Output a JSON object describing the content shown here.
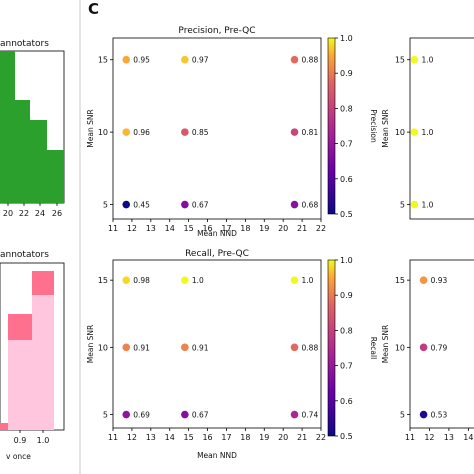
{
  "panel_label": "C",
  "left_panels": {
    "top_title": "annotators",
    "top_ticks": [
      "20",
      "22",
      "24",
      "26"
    ],
    "bottom_title": "annotators",
    "bottom_xlabel": "v once",
    "bottom_ticks": [
      "0.9",
      "1.0"
    ],
    "colors": {
      "green": "#2ca02c",
      "pink_light": "#ffc6de",
      "pink_dark": "#ff6f8e",
      "purple_bar": "#e0348a"
    }
  },
  "chart_data": [
    {
      "type": "scatter",
      "title": "Precision, Pre-QC",
      "xlabel": "Mean NND",
      "ylabel": "Mean SNR",
      "xlim": [
        11,
        22
      ],
      "ylim": [
        4,
        16.5
      ],
      "xticks": [
        "11",
        "12",
        "13",
        "14",
        "15",
        "16",
        "17",
        "18",
        "19",
        "20",
        "21",
        "22"
      ],
      "yticks": [
        "5",
        "10",
        "15"
      ],
      "colorbar": {
        "label": "Precision",
        "range": [
          0.5,
          1.0
        ],
        "ticks": [
          "0.5",
          "0.6",
          "0.7",
          "0.8",
          "0.9",
          "1.0"
        ],
        "colormap": "plasma"
      },
      "points": [
        {
          "x": 11.7,
          "y": 15,
          "value": 0.95,
          "label": "0.95"
        },
        {
          "x": 14.8,
          "y": 15,
          "value": 0.97,
          "label": "0.97"
        },
        {
          "x": 20.6,
          "y": 15,
          "value": 0.88,
          "label": "0.88"
        },
        {
          "x": 11.7,
          "y": 10,
          "value": 0.96,
          "label": "0.96"
        },
        {
          "x": 14.8,
          "y": 10,
          "value": 0.85,
          "label": "0.85"
        },
        {
          "x": 20.6,
          "y": 10,
          "value": 0.81,
          "label": "0.81"
        },
        {
          "x": 11.7,
          "y": 5,
          "value": 0.45,
          "label": "0.45"
        },
        {
          "x": 14.8,
          "y": 5,
          "value": 0.67,
          "label": "0.67"
        },
        {
          "x": 20.6,
          "y": 5,
          "value": 0.68,
          "label": "0.68"
        }
      ]
    },
    {
      "type": "scatter",
      "title": "Recall, Pre-QC",
      "xlabel": "Mean NND",
      "ylabel": "Mean SNR",
      "xlim": [
        11,
        22
      ],
      "ylim": [
        4,
        16.5
      ],
      "xticks": [
        "11",
        "12",
        "13",
        "14",
        "15",
        "16",
        "17",
        "18",
        "19",
        "20",
        "21",
        "22"
      ],
      "yticks": [
        "5",
        "10",
        "15"
      ],
      "colorbar": {
        "label": "Recall",
        "range": [
          0.5,
          1.0
        ],
        "ticks": [
          "0.5",
          "0.6",
          "0.7",
          "0.8",
          "0.9",
          "1.0"
        ],
        "colormap": "plasma"
      },
      "points": [
        {
          "x": 11.7,
          "y": 15,
          "value": 0.98,
          "label": "0.98"
        },
        {
          "x": 14.8,
          "y": 15,
          "value": 1.0,
          "label": "1.0"
        },
        {
          "x": 20.6,
          "y": 15,
          "value": 1.0,
          "label": "1.0"
        },
        {
          "x": 11.7,
          "y": 10,
          "value": 0.91,
          "label": "0.91"
        },
        {
          "x": 14.8,
          "y": 10,
          "value": 0.91,
          "label": "0.91"
        },
        {
          "x": 20.6,
          "y": 10,
          "value": 0.88,
          "label": "0.88"
        },
        {
          "x": 11.7,
          "y": 5,
          "value": 0.69,
          "label": "0.69"
        },
        {
          "x": 14.8,
          "y": 5,
          "value": 0.67,
          "label": "0.67"
        },
        {
          "x": 20.6,
          "y": 5,
          "value": 0.74,
          "label": "0.74"
        }
      ]
    },
    {
      "type": "scatter",
      "title": "",
      "ylabel": "Mean SNR",
      "ylim": [
        4,
        16.5
      ],
      "yticks": [
        "5",
        "10",
        "15"
      ],
      "xticks": [],
      "points": [
        {
          "x": 11.7,
          "y": 15,
          "value": 1.0,
          "label": "1.0"
        },
        {
          "x": 11.7,
          "y": 10,
          "value": 1.0,
          "label": "1.0"
        },
        {
          "x": 11.7,
          "y": 5,
          "value": 1.0,
          "label": "1.0"
        }
      ]
    },
    {
      "type": "scatter",
      "title": "",
      "ylabel": "Mean SNR",
      "ylim": [
        4,
        16.5
      ],
      "yticks": [
        "5",
        "10",
        "15"
      ],
      "xticks": [
        "11",
        "12",
        "13",
        "14"
      ],
      "points": [
        {
          "x": 11.7,
          "y": 15,
          "value": 0.93,
          "label": "0.93"
        },
        {
          "x": 11.7,
          "y": 10,
          "value": 0.79,
          "label": "0.79"
        },
        {
          "x": 11.7,
          "y": 5,
          "value": 0.53,
          "label": "0.53"
        }
      ]
    }
  ]
}
